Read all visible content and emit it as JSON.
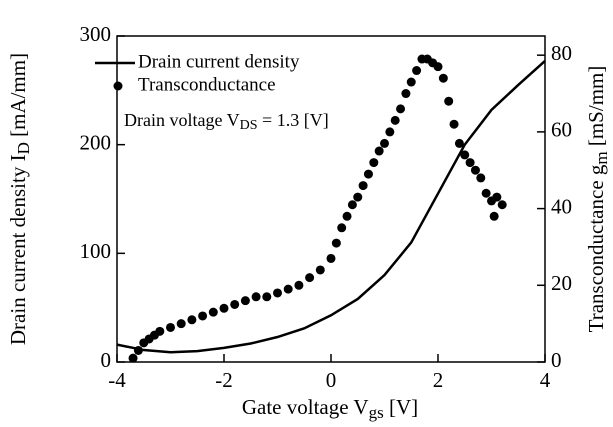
{
  "chart_data": {
    "type": "line_scatter",
    "x_label": "Gate voltage V",
    "x_label_sub": "gs",
    "x_label_unit": "[V]",
    "y_label": "Drain current density I",
    "y_label_sub": "D",
    "y_label_unit": "[mA/mm]",
    "y2_label": "Transconductance g",
    "y2_label_sub": "m",
    "y2_label_unit": "[mS/mm]",
    "annotation": "Drain voltage V",
    "annotation_sub": "DS",
    "annotation_rest": "= 1.3 [V]",
    "xlim": [
      -4,
      4
    ],
    "xticks": [
      -4,
      -2,
      0,
      2,
      4
    ],
    "ylim": [
      0,
      300
    ],
    "yticks": [
      0,
      100,
      200,
      300
    ],
    "y2lim": [
      0,
      85
    ],
    "y2ticks": [
      0,
      20,
      40,
      60,
      80
    ],
    "series": [
      {
        "name": "Drain current density",
        "color": "#000000",
        "x": [
          -4,
          -3.5,
          -3,
          -2.5,
          -2,
          -1.5,
          -1,
          -0.5,
          0,
          0.5,
          1,
          1.5,
          2,
          2.5,
          3,
          3.5,
          4
        ],
        "values": [
          16,
          11,
          9,
          10,
          13,
          17,
          23,
          31,
          43,
          58,
          80,
          110,
          155,
          200,
          232,
          255,
          277
        ]
      },
      {
        "name": "Transconductance",
        "color": "#000000",
        "axis": "y2",
        "x": [
          -3.7,
          -3.6,
          -3.5,
          -3.4,
          -3.3,
          -3.2,
          -3.0,
          -2.8,
          -2.6,
          -2.4,
          -2.2,
          -2.0,
          -1.8,
          -1.6,
          -1.4,
          -1.2,
          -1.0,
          -0.8,
          -0.6,
          -0.4,
          -0.2,
          0,
          0.1,
          0.2,
          0.3,
          0.4,
          0.5,
          0.6,
          0.7,
          0.8,
          0.9,
          1.0,
          1.1,
          1.2,
          1.3,
          1.4,
          1.5,
          1.6,
          1.7,
          1.8,
          1.9,
          2.0,
          2.1,
          2.2,
          2.3,
          2.4,
          2.5,
          2.6,
          2.7,
          2.8,
          2.9,
          3.0,
          3.05,
          3.1,
          3.2
        ],
        "values": [
          1,
          3,
          5,
          6,
          7,
          8,
          9,
          10,
          11,
          12,
          13,
          14,
          15,
          16,
          17,
          17,
          18,
          19,
          20,
          22,
          24,
          27,
          31,
          35,
          38,
          41,
          43,
          46,
          49,
          52,
          55,
          57,
          60,
          63,
          66,
          70,
          73,
          76,
          79,
          79,
          78,
          77,
          74,
          68,
          62,
          57,
          54,
          52,
          50,
          48,
          44,
          42,
          38,
          43,
          41
        ]
      }
    ]
  }
}
